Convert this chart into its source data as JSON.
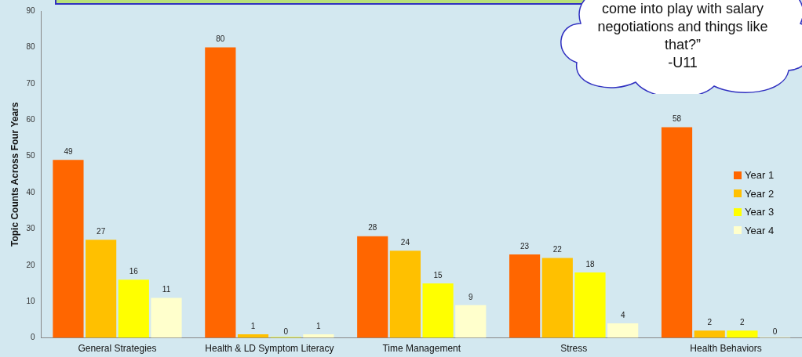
{
  "chart_data": {
    "type": "bar",
    "ylabel": "Topic Counts Across Four Years",
    "categories": [
      "General Strategies",
      "Health & LD Symptom Literacy",
      "Time Management",
      "Stress",
      "Health Behaviors"
    ],
    "series": [
      {
        "name": "Year 1",
        "color": "#ff6600",
        "values": [
          49,
          80,
          28,
          23,
          58
        ]
      },
      {
        "name": "Year 2",
        "color": "#ffc000",
        "values": [
          27,
          1,
          24,
          22,
          2
        ]
      },
      {
        "name": "Year 3",
        "color": "#ffff00",
        "values": [
          16,
          0,
          15,
          18,
          2
        ]
      },
      {
        "name": "Year 4",
        "color": "#ffffcc",
        "values": [
          11,
          1,
          9,
          4,
          0
        ]
      }
    ],
    "ylim": [
      0,
      90
    ],
    "yticks": [
      0,
      10,
      20,
      30,
      40,
      50,
      60,
      70,
      80,
      90
    ],
    "grid": false,
    "legend": "right",
    "data_labels": true,
    "annotations": [
      "come into play with salary negotiations and things like that?”",
      "-U11"
    ]
  }
}
